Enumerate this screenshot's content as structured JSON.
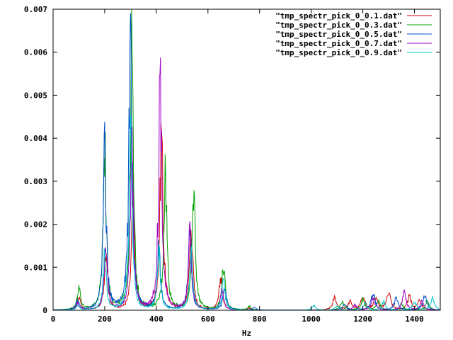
{
  "chart_data": {
    "type": "line",
    "title": "",
    "xlabel": "Hz",
    "ylabel": "",
    "xlim": [
      0,
      1500
    ],
    "ylim": [
      0,
      0.007
    ],
    "x_ticks": [
      0,
      200,
      400,
      600,
      800,
      1000,
      1200,
      1400
    ],
    "y_ticks": [
      0,
      0.001,
      0.002,
      0.003,
      0.004,
      0.005,
      0.006,
      0.007
    ],
    "y_tick_labels": [
      "0",
      "0.001",
      "0.002",
      "0.003",
      "0.004",
      "0.005",
      "0.006",
      "0.007"
    ],
    "grid": false,
    "legend_position": "top-right",
    "series": [
      {
        "name": "\"tmp_spectr_pick_0_0.1.dat\"",
        "color": "#cc0000",
        "peaks": [
          [
            100,
            0.0003
          ],
          [
            205,
            0.0015
          ],
          [
            310,
            0.0027
          ],
          [
            420,
            0.0044
          ],
          [
            535,
            0.0021
          ],
          [
            650,
            0.0008
          ],
          [
            760,
            5e-05
          ],
          [
            1090,
            0.0003
          ],
          [
            1150,
            0.0002
          ],
          [
            1200,
            0.00035
          ],
          [
            1250,
            0.0003
          ],
          [
            1300,
            0.00045
          ],
          [
            1380,
            0.0003
          ],
          [
            1420,
            0.00025
          ]
        ]
      },
      {
        "name": "\"tmp_spectr_pick_0_0.3.dat\"",
        "color": "#00a000",
        "peaks": [
          [
            100,
            0.00055
          ],
          [
            200,
            0.0039
          ],
          [
            305,
            0.0062
          ],
          [
            435,
            0.0033
          ],
          [
            545,
            0.0029
          ],
          [
            660,
            0.00105
          ],
          [
            760,
            8e-05
          ],
          [
            1120,
            0.0002
          ],
          [
            1200,
            0.00025
          ],
          [
            1260,
            0.0002
          ],
          [
            1350,
            0.00015
          ],
          [
            1450,
            0.0002
          ]
        ]
      },
      {
        "name": "\"tmp_spectr_pick_0_0.5.dat\"",
        "color": "#0050c8",
        "peaks": [
          [
            95,
            0.0002
          ],
          [
            200,
            0.0037
          ],
          [
            300,
            0.0067
          ],
          [
            410,
            0.0015
          ],
          [
            530,
            0.0019
          ],
          [
            665,
            0.0006
          ],
          [
            780,
            6e-05
          ],
          [
            1130,
            0.00015
          ],
          [
            1240,
            0.00045
          ],
          [
            1330,
            0.0003
          ],
          [
            1440,
            0.00035
          ]
        ]
      },
      {
        "name": "\"tmp_spectr_pick_0_0.7.dat\"",
        "color": "#a000c8",
        "peaks": [
          [
            95,
            0.00015
          ],
          [
            205,
            0.0016
          ],
          [
            305,
            0.0038
          ],
          [
            415,
            0.0057
          ],
          [
            530,
            0.0018
          ],
          [
            655,
            0.0005
          ],
          [
            1170,
            0.00012
          ],
          [
            1240,
            0.0003
          ],
          [
            1360,
            0.0004
          ],
          [
            1430,
            0.0002
          ]
        ]
      },
      {
        "name": "\"tmp_spectr_pick_0_0.9.dat\"",
        "color": "#00c8c8",
        "peaks": [
          [
            95,
            0.0001
          ],
          [
            200,
            0.0013
          ],
          [
            300,
            0.0041
          ],
          [
            410,
            0.0013
          ],
          [
            535,
            0.0015
          ],
          [
            660,
            0.0007
          ],
          [
            1010,
            0.0001
          ],
          [
            1100,
            0.0001
          ],
          [
            1210,
            0.00015
          ],
          [
            1280,
            0.0002
          ],
          [
            1400,
            0.0002
          ],
          [
            1470,
            0.0003
          ]
        ]
      }
    ]
  }
}
